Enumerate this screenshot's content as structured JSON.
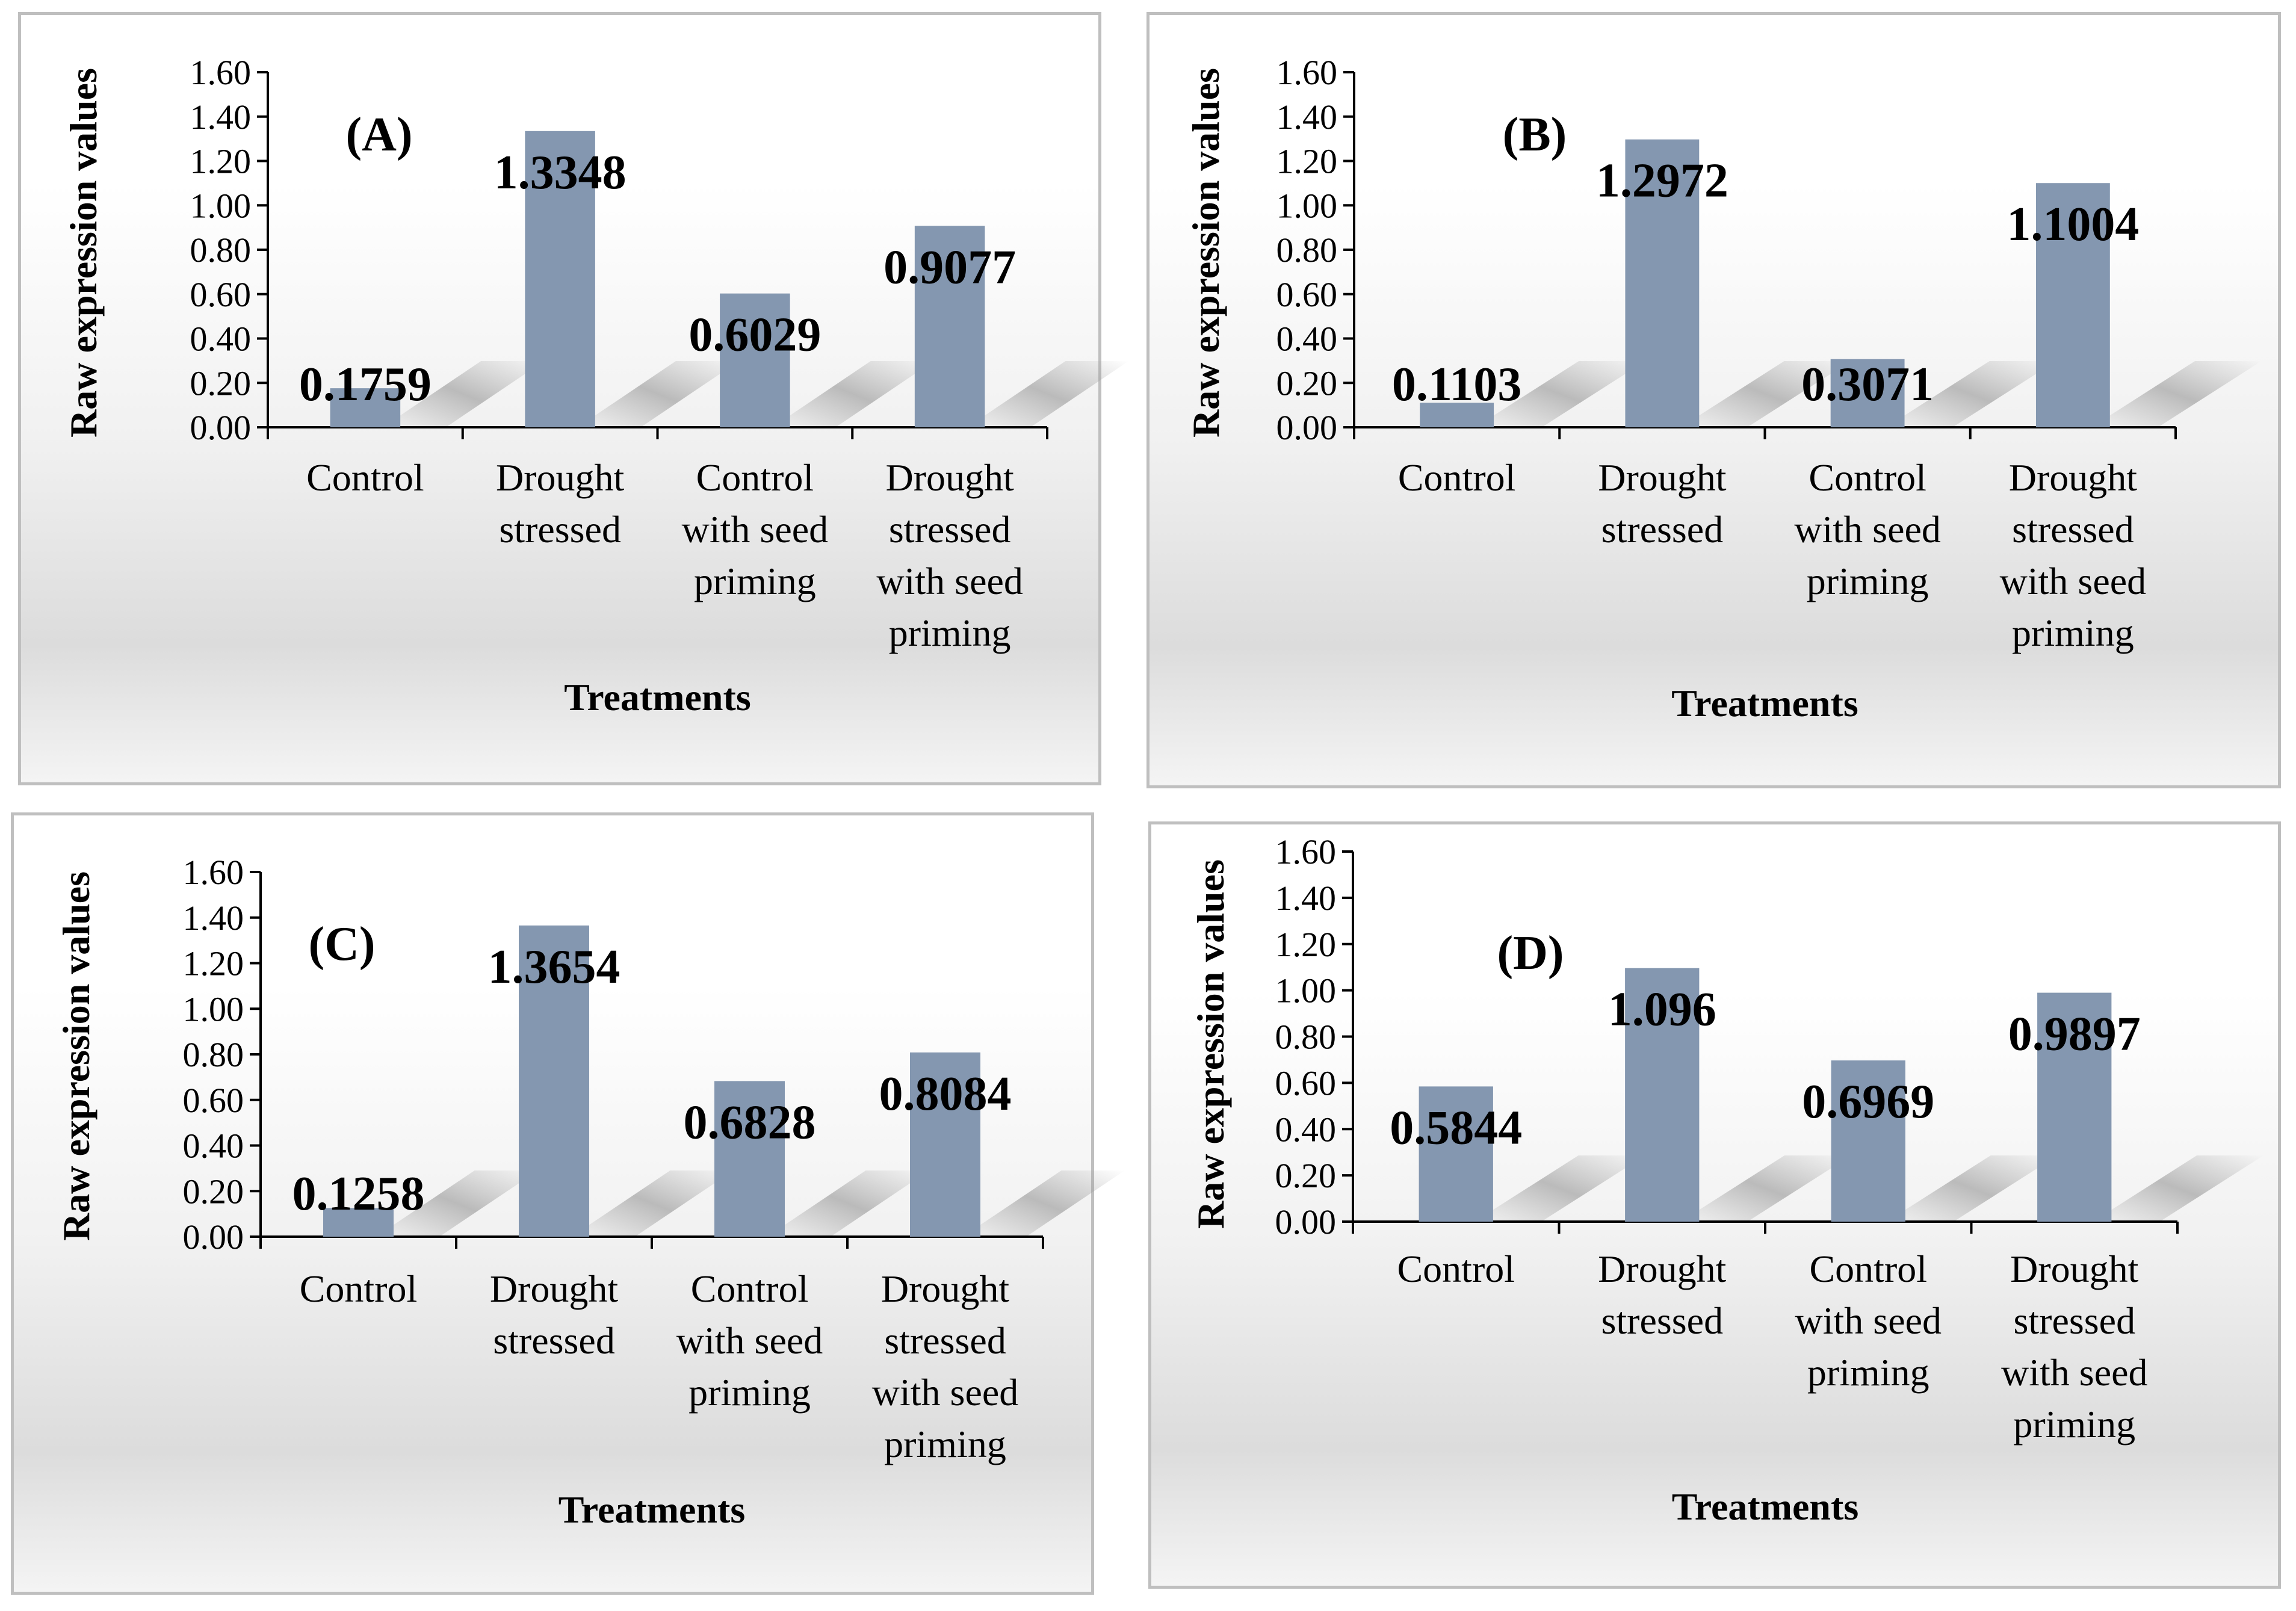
{
  "chart_data": [
    {
      "type": "bar",
      "panel_label": "(A)",
      "categories": [
        [
          "Control"
        ],
        [
          "Drought",
          "stressed"
        ],
        [
          "Control",
          "with seed",
          "priming"
        ],
        [
          "Drought",
          "stressed",
          "with seed",
          "priming"
        ]
      ],
      "values": [
        0.1759,
        1.3348,
        0.6029,
        0.9077
      ],
      "value_labels": [
        "0.1759",
        "1.3348",
        "0.6029",
        "0.9077"
      ],
      "xlabel": "Treatments",
      "ylabel": "Raw expression values",
      "ylim": [
        0,
        1.6
      ],
      "yticks": [
        "0.00",
        "0.20",
        "0.40",
        "0.60",
        "0.80",
        "1.00",
        "1.20",
        "1.40",
        "1.60"
      ],
      "bar_color": "#8497b0",
      "grid": false
    },
    {
      "type": "bar",
      "panel_label": "(B)",
      "categories": [
        [
          "Control"
        ],
        [
          "Drought",
          "stressed"
        ],
        [
          "Control",
          "with seed",
          "priming"
        ],
        [
          "Drought",
          "stressed",
          "with seed",
          "priming"
        ]
      ],
      "values": [
        0.1103,
        1.2972,
        0.3071,
        1.1004
      ],
      "value_labels": [
        "0.1103",
        "1.2972",
        "0.3071",
        "1.1004"
      ],
      "xlabel": "Treatments",
      "ylabel": "Raw expression values",
      "ylim": [
        0,
        1.6
      ],
      "yticks": [
        "0.00",
        "0.20",
        "0.40",
        "0.60",
        "0.80",
        "1.00",
        "1.20",
        "1.40",
        "1.60"
      ],
      "bar_color": "#8497b0",
      "grid": false
    },
    {
      "type": "bar",
      "panel_label": "(C)",
      "categories": [
        [
          "Control"
        ],
        [
          "Drought",
          "stressed"
        ],
        [
          "Control",
          "with seed",
          "priming"
        ],
        [
          "Drought",
          "stressed",
          "with seed",
          "priming"
        ]
      ],
      "values": [
        0.1258,
        1.3654,
        0.6828,
        0.8084
      ],
      "value_labels": [
        "0.1258",
        "1.3654",
        "0.6828",
        "0.8084"
      ],
      "xlabel": "Treatments",
      "ylabel": "Raw expression values",
      "ylim": [
        0,
        1.6
      ],
      "yticks": [
        "0.00",
        "0.20",
        "0.40",
        "0.60",
        "0.80",
        "1.00",
        "1.20",
        "1.40",
        "1.60"
      ],
      "bar_color": "#8497b0",
      "grid": false
    },
    {
      "type": "bar",
      "panel_label": "(D)",
      "categories": [
        [
          "Control"
        ],
        [
          "Drought",
          "stressed"
        ],
        [
          "Control",
          "with seed",
          "priming"
        ],
        [
          "Drought",
          "stressed",
          "with seed",
          "priming"
        ]
      ],
      "values": [
        0.5844,
        1.096,
        0.6969,
        0.9897
      ],
      "value_labels": [
        "0.5844",
        "1.096",
        "0.6969",
        "0.9897"
      ],
      "xlabel": "Treatments",
      "ylabel": "Raw expression values",
      "ylim": [
        0,
        1.6
      ],
      "yticks": [
        "0.00",
        "0.20",
        "0.40",
        "0.60",
        "0.80",
        "1.00",
        "1.20",
        "1.40",
        "1.60"
      ],
      "bar_color": "#8497b0",
      "grid": false
    }
  ]
}
